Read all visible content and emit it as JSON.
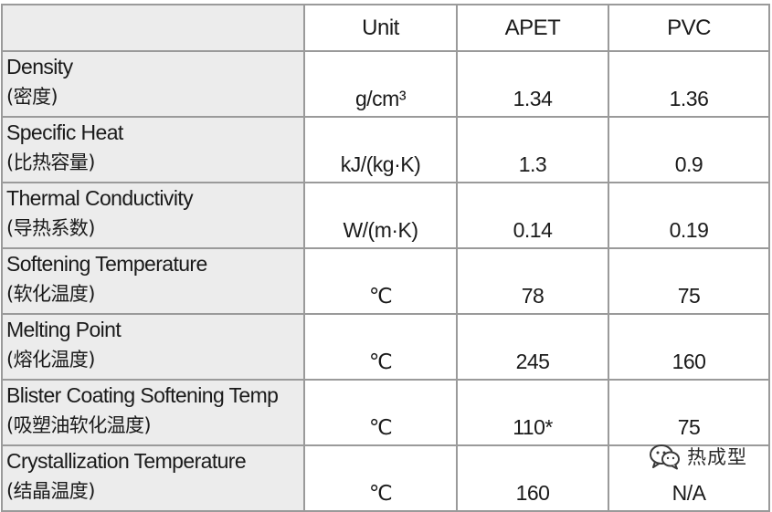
{
  "table": {
    "columns": [
      "",
      "Unit",
      "APET",
      "PVC"
    ],
    "rows": [
      {
        "property": "Density",
        "property_zh": "(密度)",
        "unit": "g/cm³",
        "apet": "1.34",
        "pvc": "1.36"
      },
      {
        "property": "Specific Heat",
        "property_zh": "(比热容量)",
        "unit": "kJ/(kg·K)",
        "apet": "1.3",
        "pvc": "0.9"
      },
      {
        "property": "Thermal Conductivity",
        "property_zh": "(导热系数)",
        "unit": "W/(m·K)",
        "apet": "0.14",
        "pvc": "0.19"
      },
      {
        "property": "Softening Temperature",
        "property_zh": "(软化温度)",
        "unit": "℃",
        "apet": "78",
        "pvc": "75"
      },
      {
        "property": "Melting Point",
        "property_zh": "(熔化温度)",
        "unit": "℃",
        "apet": "245",
        "pvc": "160"
      },
      {
        "property": "Blister Coating Softening Temp",
        "property_zh": "(吸塑油软化温度)",
        "unit": "℃",
        "apet": "110*",
        "pvc": "75"
      },
      {
        "property": "Crystallization Temperature",
        "property_zh": "(结晶温度)",
        "unit": "℃",
        "apet": "160",
        "pvc": "N/A"
      }
    ]
  },
  "watermark": {
    "text": "热成型",
    "icon": "wechat-icon"
  }
}
